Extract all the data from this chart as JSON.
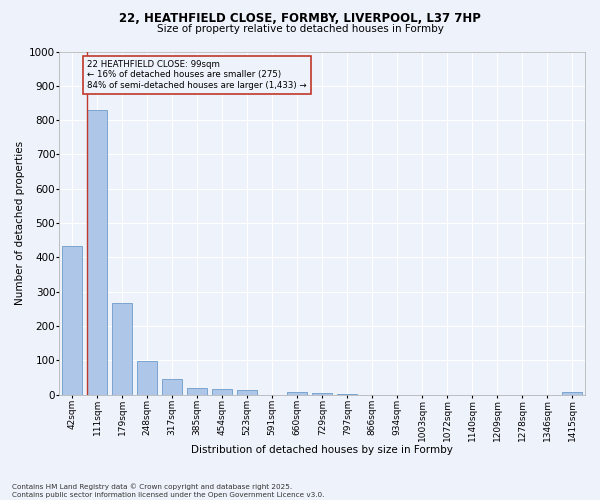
{
  "title1": "22, HEATHFIELD CLOSE, FORMBY, LIVERPOOL, L37 7HP",
  "title2": "Size of property relative to detached houses in Formby",
  "xlabel": "Distribution of detached houses by size in Formby",
  "ylabel": "Number of detached properties",
  "categories": [
    "42sqm",
    "111sqm",
    "179sqm",
    "248sqm",
    "317sqm",
    "385sqm",
    "454sqm",
    "523sqm",
    "591sqm",
    "660sqm",
    "729sqm",
    "797sqm",
    "866sqm",
    "934sqm",
    "1003sqm",
    "1072sqm",
    "1140sqm",
    "1209sqm",
    "1278sqm",
    "1346sqm",
    "1415sqm"
  ],
  "values": [
    433,
    830,
    268,
    97,
    44,
    20,
    15,
    12,
    0,
    8,
    5,
    3,
    0,
    0,
    0,
    0,
    0,
    0,
    0,
    0,
    7
  ],
  "bar_color": "#aec6e8",
  "bar_edge_color": "#5a8fc2",
  "subject_line_color": "#c0392b",
  "annotation_text": "22 HEATHFIELD CLOSE: 99sqm\n← 16% of detached houses are smaller (275)\n84% of semi-detached houses are larger (1,433) →",
  "annotation_box_color": "#c0392b",
  "ylim": [
    0,
    1000
  ],
  "yticks": [
    0,
    100,
    200,
    300,
    400,
    500,
    600,
    700,
    800,
    900,
    1000
  ],
  "footer_line1": "Contains HM Land Registry data © Crown copyright and database right 2025.",
  "footer_line2": "Contains public sector information licensed under the Open Government Licence v3.0.",
  "bg_color": "#eef2fa",
  "grid_color": "#ffffff"
}
